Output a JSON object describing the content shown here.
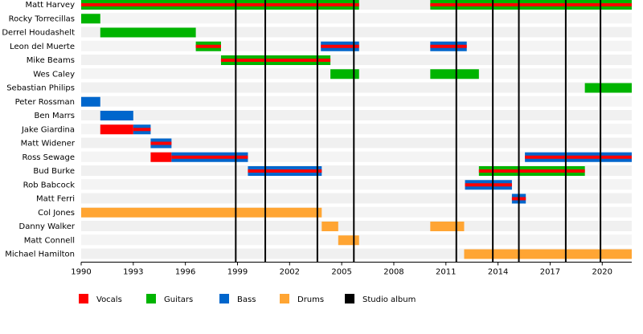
{
  "chart_data": {
    "type": "timeline",
    "xlim": [
      1990,
      2021.7
    ],
    "xticks": [
      1990,
      1993,
      1996,
      1999,
      2002,
      2005,
      2008,
      2011,
      2014,
      2017,
      2020
    ],
    "legend": [
      {
        "name": "Vocals",
        "color": "#ff0000"
      },
      {
        "name": "Guitars",
        "color": "#00b400"
      },
      {
        "name": "Bass",
        "color": "#0066cc"
      },
      {
        "name": "Drums",
        "color": "#ffa533"
      },
      {
        "name": "Studio album",
        "color": "#000000"
      }
    ],
    "albums": [
      1998.9,
      2000.6,
      2003.6,
      2005.7,
      2011.6,
      2013.7,
      2015.2,
      2017.9,
      2019.9
    ],
    "members": [
      {
        "name": "Matt Harvey",
        "periods": [
          {
            "start": 1990,
            "end": 2006.0,
            "roles": [
              "Guitars",
              "Vocals"
            ]
          },
          {
            "start": 2010.1,
            "end": 2021.7,
            "roles": [
              "Guitars",
              "Vocals"
            ]
          }
        ]
      },
      {
        "name": "Rocky Torrecillas",
        "periods": [
          {
            "start": 1990,
            "end": 1991.1,
            "roles": [
              "Guitars"
            ]
          }
        ]
      },
      {
        "name": "Derrel Houdashelt",
        "periods": [
          {
            "start": 1991.1,
            "end": 1996.6,
            "roles": [
              "Guitars"
            ]
          }
        ]
      },
      {
        "name": "Leon del Muerte",
        "periods": [
          {
            "start": 1996.6,
            "end": 1998.05,
            "roles": [
              "Guitars",
              "Vocals"
            ]
          },
          {
            "start": 2003.8,
            "end": 2006.0,
            "roles": [
              "Bass",
              "Vocals"
            ]
          },
          {
            "start": 2010.1,
            "end": 2012.2,
            "roles": [
              "Bass",
              "Vocals"
            ]
          }
        ]
      },
      {
        "name": "Mike Beams",
        "periods": [
          {
            "start": 1998.05,
            "end": 2004.35,
            "roles": [
              "Guitars",
              "Vocals"
            ]
          }
        ]
      },
      {
        "name": "Wes Caley",
        "periods": [
          {
            "start": 2004.35,
            "end": 2006.0,
            "roles": [
              "Guitars"
            ]
          },
          {
            "start": 2010.1,
            "end": 2012.9,
            "roles": [
              "Guitars"
            ]
          }
        ]
      },
      {
        "name": "Sebastian Philips",
        "periods": [
          {
            "start": 2019.0,
            "end": 2021.7,
            "roles": [
              "Guitars"
            ]
          }
        ]
      },
      {
        "name": "Peter Rossman",
        "periods": [
          {
            "start": 1990,
            "end": 1991.1,
            "roles": [
              "Bass"
            ]
          }
        ]
      },
      {
        "name": "Ben Marrs",
        "periods": [
          {
            "start": 1991.1,
            "end": 1993.0,
            "roles": [
              "Bass"
            ]
          }
        ]
      },
      {
        "name": "Jake Giardina",
        "periods": [
          {
            "start": 1991.1,
            "end": 1993.0,
            "roles": [
              "Vocals"
            ]
          },
          {
            "start": 1993.0,
            "end": 1994.0,
            "roles": [
              "Bass",
              "Vocals"
            ]
          }
        ]
      },
      {
        "name": "Matt Widener",
        "periods": [
          {
            "start": 1994.0,
            "end": 1995.2,
            "roles": [
              "Bass",
              "Vocals"
            ]
          }
        ]
      },
      {
        "name": "Ross Sewage",
        "periods": [
          {
            "start": 1994.0,
            "end": 1995.2,
            "roles": [
              "Vocals"
            ]
          },
          {
            "start": 1995.2,
            "end": 1999.6,
            "roles": [
              "Bass",
              "Vocals"
            ]
          },
          {
            "start": 2015.55,
            "end": 2021.7,
            "roles": [
              "Bass",
              "Vocals"
            ]
          }
        ]
      },
      {
        "name": "Bud Burke",
        "periods": [
          {
            "start": 1999.6,
            "end": 2003.85,
            "roles": [
              "Bass",
              "Vocals"
            ]
          },
          {
            "start": 2012.9,
            "end": 2019.0,
            "roles": [
              "Guitars",
              "Vocals"
            ]
          }
        ]
      },
      {
        "name": "Rob Babcock",
        "periods": [
          {
            "start": 2012.1,
            "end": 2014.8,
            "roles": [
              "Bass",
              "Vocals"
            ]
          }
        ]
      },
      {
        "name": "Matt Ferri",
        "periods": [
          {
            "start": 2014.8,
            "end": 2015.6,
            "roles": [
              "Bass",
              "Vocals"
            ]
          }
        ]
      },
      {
        "name": "Col Jones",
        "periods": [
          {
            "start": 1990,
            "end": 2003.85,
            "roles": [
              "Drums"
            ]
          }
        ]
      },
      {
        "name": "Danny Walker",
        "periods": [
          {
            "start": 2003.85,
            "end": 2004.8,
            "roles": [
              "Drums"
            ]
          },
          {
            "start": 2010.1,
            "end": 2012.05,
            "roles": [
              "Drums"
            ]
          }
        ]
      },
      {
        "name": "Matt Connell",
        "periods": [
          {
            "start": 2004.8,
            "end": 2006.0,
            "roles": [
              "Drums"
            ]
          }
        ]
      },
      {
        "name": "Michael Hamilton",
        "periods": [
          {
            "start": 2012.05,
            "end": 2021.7,
            "roles": [
              "Drums"
            ]
          }
        ]
      }
    ]
  }
}
